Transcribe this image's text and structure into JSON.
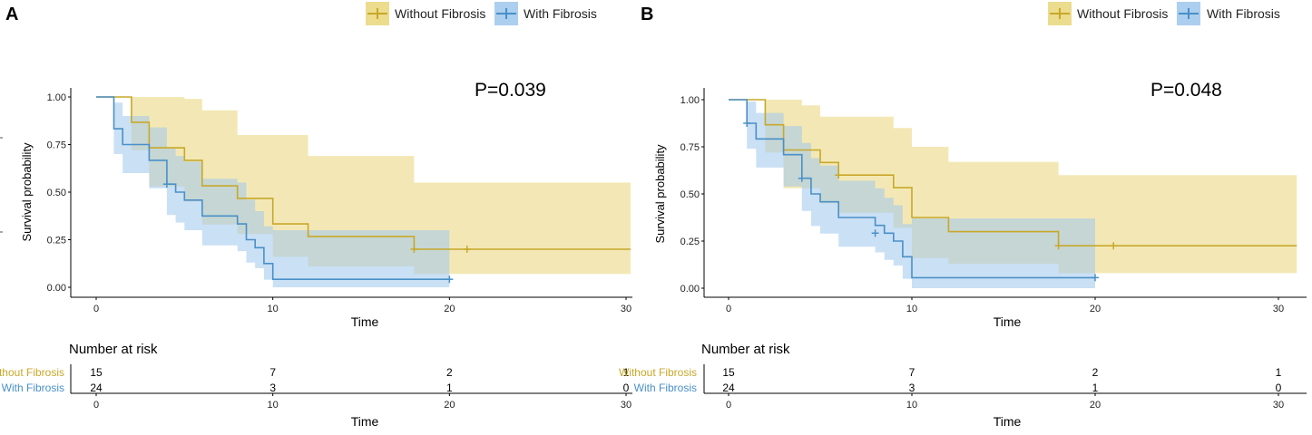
{
  "colors": {
    "without": "#C8A82B",
    "with": "#4A90C8",
    "without_fill": "#E9D679",
    "with_fill": "#9EC6EC"
  },
  "legend": {
    "without": "Without Fibrosis",
    "with": "With Fibrosis"
  },
  "chart_data": [
    {
      "panel": "A",
      "type": "line",
      "subtype": "kaplan-meier",
      "pvalue": "P=0.039",
      "xlabel": "Time",
      "ylabel": "Survival probability",
      "xlim": [
        0,
        30
      ],
      "ylim": [
        0,
        1
      ],
      "xticks": [
        "0",
        "10",
        "20",
        "30"
      ],
      "yticks": [
        "0.00",
        "0.25",
        "0.50",
        "0.75",
        "1.00"
      ],
      "series": [
        {
          "name": "Without Fibrosis",
          "color_key": "without",
          "steps": [
            [
              0,
              1.0
            ],
            [
              2,
              0.867
            ],
            [
              3,
              0.733
            ],
            [
              5,
              0.667
            ],
            [
              6,
              0.533
            ],
            [
              8,
              0.467
            ],
            [
              10,
              0.333
            ],
            [
              12,
              0.267
            ],
            [
              18,
              0.2
            ],
            [
              31,
              0.2
            ]
          ],
          "lower": [
            [
              0,
              1.0
            ],
            [
              2,
              0.72
            ],
            [
              3,
              0.53
            ],
            [
              5,
              0.45
            ],
            [
              6,
              0.33
            ],
            [
              8,
              0.28
            ],
            [
              10,
              0.16
            ],
            [
              12,
              0.11
            ],
            [
              18,
              0.07
            ],
            [
              31,
              0.07
            ]
          ],
          "upper": [
            [
              0,
              1.0
            ],
            [
              2,
              1.0
            ],
            [
              4,
              1.0
            ],
            [
              5,
              0.99
            ],
            [
              6,
              0.93
            ],
            [
              8,
              0.8
            ],
            [
              10,
              0.8
            ],
            [
              12,
              0.69
            ],
            [
              18,
              0.55
            ],
            [
              31,
              0.55
            ]
          ],
          "censor": [
            [
              18,
              0.2
            ],
            [
              21,
              0.2
            ]
          ]
        },
        {
          "name": "With Fibrosis",
          "color_key": "with",
          "steps": [
            [
              0,
              1.0
            ],
            [
              1,
              0.833
            ],
            [
              1.5,
              0.75
            ],
            [
              3,
              0.667
            ],
            [
              4,
              0.542
            ],
            [
              4.5,
              0.5
            ],
            [
              5,
              0.458
            ],
            [
              6,
              0.375
            ],
            [
              8,
              0.333
            ],
            [
              8.5,
              0.25
            ],
            [
              9,
              0.208
            ],
            [
              9.5,
              0.125
            ],
            [
              10,
              0.042
            ],
            [
              20,
              0.042
            ]
          ],
          "lower": [
            [
              0,
              1.0
            ],
            [
              1,
              0.7
            ],
            [
              1.5,
              0.6
            ],
            [
              3,
              0.52
            ],
            [
              4,
              0.38
            ],
            [
              4.5,
              0.34
            ],
            [
              5,
              0.3
            ],
            [
              6,
              0.22
            ],
            [
              8,
              0.19
            ],
            [
              8.5,
              0.13
            ],
            [
              9,
              0.1
            ],
            [
              9.5,
              0.04
            ],
            [
              10,
              0.0
            ],
            [
              20,
              0.0
            ]
          ],
          "upper": [
            [
              0,
              1.0
            ],
            [
              1,
              0.97
            ],
            [
              1.5,
              0.9
            ],
            [
              3,
              0.84
            ],
            [
              4,
              0.73
            ],
            [
              4.5,
              0.69
            ],
            [
              5,
              0.66
            ],
            [
              6,
              0.57
            ],
            [
              8,
              0.55
            ],
            [
              8.5,
              0.46
            ],
            [
              9,
              0.4
            ],
            [
              9.5,
              0.32
            ],
            [
              10,
              0.3
            ],
            [
              20,
              0.3
            ]
          ],
          "censor": [
            [
              4,
              0.542
            ],
            [
              20,
              0.042
            ]
          ]
        }
      ],
      "risk_table": {
        "title": "Number at risk",
        "xlabel": "Time",
        "times": [
          "0",
          "10",
          "20",
          "30"
        ],
        "rows": [
          {
            "label": "Without Fibrosis",
            "color_key": "without",
            "values": [
              "15",
              "7",
              "2",
              "1"
            ]
          },
          {
            "label": "With Fibrosis",
            "color_key": "with",
            "values": [
              "24",
              "3",
              "1",
              "0"
            ]
          }
        ]
      }
    },
    {
      "panel": "B",
      "type": "line",
      "subtype": "kaplan-meier",
      "pvalue": "P=0.048",
      "xlabel": "Time",
      "ylabel": "Survival probability",
      "xlim": [
        0,
        30
      ],
      "ylim": [
        0,
        1
      ],
      "xticks": [
        "0",
        "10",
        "20",
        "30"
      ],
      "yticks": [
        "0.00",
        "0.25",
        "0.50",
        "0.75",
        "1.00"
      ],
      "series": [
        {
          "name": "Without Fibrosis",
          "color_key": "without",
          "steps": [
            [
              0,
              1.0
            ],
            [
              2,
              0.867
            ],
            [
              3,
              0.733
            ],
            [
              5,
              0.667
            ],
            [
              6,
              0.6
            ],
            [
              9,
              0.533
            ],
            [
              10,
              0.375
            ],
            [
              12,
              0.3
            ],
            [
              18,
              0.225
            ],
            [
              31,
              0.225
            ]
          ],
          "lower": [
            [
              0,
              1.0
            ],
            [
              2,
              0.72
            ],
            [
              3,
              0.53
            ],
            [
              5,
              0.45
            ],
            [
              6,
              0.4
            ],
            [
              9,
              0.32
            ],
            [
              10,
              0.16
            ],
            [
              12,
              0.13
            ],
            [
              18,
              0.08
            ],
            [
              31,
              0.03
            ]
          ],
          "upper": [
            [
              0,
              1.0
            ],
            [
              2,
              1.0
            ],
            [
              4,
              0.97
            ],
            [
              5,
              0.91
            ],
            [
              6,
              0.91
            ],
            [
              9,
              0.85
            ],
            [
              10,
              0.75
            ],
            [
              12,
              0.67
            ],
            [
              18,
              0.6
            ],
            [
              31,
              0.6
            ]
          ],
          "censor": [
            [
              6,
              0.6
            ],
            [
              18,
              0.225
            ],
            [
              21,
              0.225
            ]
          ]
        },
        {
          "name": "With Fibrosis",
          "color_key": "with",
          "steps": [
            [
              0,
              1.0
            ],
            [
              1,
              0.875
            ],
            [
              1.5,
              0.792
            ],
            [
              3,
              0.708
            ],
            [
              4,
              0.583
            ],
            [
              4.5,
              0.5
            ],
            [
              5,
              0.458
            ],
            [
              6,
              0.375
            ],
            [
              8,
              0.333
            ],
            [
              8.5,
              0.292
            ],
            [
              9,
              0.25
            ],
            [
              9.5,
              0.167
            ],
            [
              10,
              0.056
            ],
            [
              20,
              0.056
            ]
          ],
          "lower": [
            [
              0,
              1.0
            ],
            [
              1,
              0.74
            ],
            [
              1.5,
              0.64
            ],
            [
              3,
              0.54
            ],
            [
              4,
              0.41
            ],
            [
              4.5,
              0.33
            ],
            [
              5,
              0.29
            ],
            [
              6,
              0.22
            ],
            [
              8,
              0.19
            ],
            [
              8.5,
              0.15
            ],
            [
              9,
              0.12
            ],
            [
              9.5,
              0.05
            ],
            [
              10,
              0.0
            ],
            [
              20,
              0.0
            ]
          ],
          "upper": [
            [
              0,
              1.0
            ],
            [
              1,
              0.99
            ],
            [
              1.5,
              0.93
            ],
            [
              3,
              0.86
            ],
            [
              4,
              0.77
            ],
            [
              4.5,
              0.69
            ],
            [
              5,
              0.65
            ],
            [
              6,
              0.57
            ],
            [
              8,
              0.53
            ],
            [
              8.5,
              0.48
            ],
            [
              9,
              0.44
            ],
            [
              9.5,
              0.34
            ],
            [
              10,
              0.37
            ],
            [
              20,
              0.37
            ]
          ],
          "censor": [
            [
              1,
              0.875
            ],
            [
              4,
              0.583
            ],
            [
              8,
              0.292
            ],
            [
              20,
              0.056
            ]
          ]
        }
      ],
      "risk_table": {
        "title": "Number at risk",
        "xlabel": "Time",
        "times": [
          "0",
          "10",
          "20",
          "30"
        ],
        "rows": [
          {
            "label": "Without Fibrosis",
            "color_key": "without",
            "values": [
              "15",
              "7",
              "2",
              "1"
            ]
          },
          {
            "label": "With Fibrosis",
            "color_key": "with",
            "values": [
              "24",
              "3",
              "1",
              "0"
            ]
          }
        ]
      }
    }
  ]
}
